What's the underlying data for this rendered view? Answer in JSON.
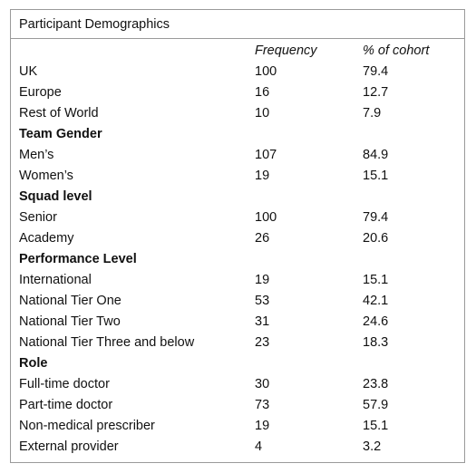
{
  "table": {
    "title": "Participant Demographics",
    "columns": [
      "Frequency",
      "% of cohort"
    ],
    "rows": [
      {
        "label": "UK",
        "frequency": 100,
        "percent": 79.4
      },
      {
        "label": "Europe",
        "frequency": 16,
        "percent": 12.7
      },
      {
        "label": "Rest of World",
        "frequency": 10,
        "percent": 7.9
      },
      {
        "heading": "Team Gender"
      },
      {
        "label": "Men’s",
        "frequency": 107,
        "percent": 84.9
      },
      {
        "label": "Women’s",
        "frequency": 19,
        "percent": 15.1
      },
      {
        "heading": "Squad level"
      },
      {
        "label": "Senior",
        "frequency": 100,
        "percent": 79.4
      },
      {
        "label": "Academy",
        "frequency": 26,
        "percent": 20.6
      },
      {
        "heading": "Performance Level"
      },
      {
        "label": "International",
        "frequency": 19,
        "percent": 15.1
      },
      {
        "label": "National Tier One",
        "frequency": 53,
        "percent": 42.1
      },
      {
        "label": "National Tier Two",
        "frequency": 31,
        "percent": 24.6
      },
      {
        "label": "National Tier Three and below",
        "frequency": 23,
        "percent": 18.3
      },
      {
        "heading": "Role"
      },
      {
        "label": "Full-time doctor",
        "frequency": 30,
        "percent": 23.8
      },
      {
        "label": "Part-time doctor",
        "frequency": 73,
        "percent": 57.9
      },
      {
        "label": "Non-medical prescriber",
        "frequency": 19,
        "percent": 15.1
      },
      {
        "label": "External provider",
        "frequency": 4,
        "percent": 3.2
      }
    ]
  }
}
